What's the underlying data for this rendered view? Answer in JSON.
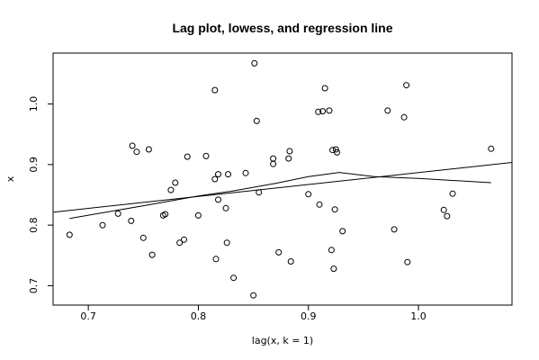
{
  "chart_data": {
    "type": "scatter",
    "title": "Lag plot, lowess, and regression line",
    "xlabel": "lag(x, k = 1)",
    "ylabel": "x",
    "xlim": [
      0.668,
      1.085
    ],
    "ylim": [
      0.668,
      1.084
    ],
    "xticks": [
      0.7,
      0.8,
      0.9,
      1.0
    ],
    "xtick_labels": [
      "0.7",
      "0.8",
      "0.9",
      "1.0"
    ],
    "yticks": [
      0.7,
      0.8,
      0.9,
      1.0
    ],
    "ytick_labels": [
      "0.7",
      "0.8",
      "0.9",
      "1.0"
    ],
    "grid": false,
    "points": [
      [
        0.683,
        0.784
      ],
      [
        0.713,
        0.8
      ],
      [
        0.727,
        0.819
      ],
      [
        0.739,
        0.807
      ],
      [
        0.74,
        0.931
      ],
      [
        0.744,
        0.921
      ],
      [
        0.75,
        0.779
      ],
      [
        0.755,
        0.925
      ],
      [
        0.758,
        0.751
      ],
      [
        0.768,
        0.816
      ],
      [
        0.77,
        0.818
      ],
      [
        0.775,
        0.858
      ],
      [
        0.779,
        0.87
      ],
      [
        0.783,
        0.771
      ],
      [
        0.787,
        0.776
      ],
      [
        0.79,
        0.913
      ],
      [
        0.8,
        0.816
      ],
      [
        0.807,
        0.914
      ],
      [
        0.815,
        1.023
      ],
      [
        0.815,
        0.876
      ],
      [
        0.816,
        0.744
      ],
      [
        0.818,
        0.884
      ],
      [
        0.818,
        0.842
      ],
      [
        0.825,
        0.828
      ],
      [
        0.826,
        0.771
      ],
      [
        0.827,
        0.884
      ],
      [
        0.832,
        0.713
      ],
      [
        0.843,
        0.886
      ],
      [
        0.85,
        0.684
      ],
      [
        0.851,
        1.067
      ],
      [
        0.853,
        0.972
      ],
      [
        0.855,
        0.854
      ],
      [
        0.868,
        0.901
      ],
      [
        0.868,
        0.91
      ],
      [
        0.873,
        0.755
      ],
      [
        0.882,
        0.91
      ],
      [
        0.883,
        0.922
      ],
      [
        0.884,
        0.74
      ],
      [
        0.9,
        0.851
      ],
      [
        0.909,
        0.987
      ],
      [
        0.91,
        0.834
      ],
      [
        0.913,
        0.988
      ],
      [
        0.915,
        1.026
      ],
      [
        0.919,
        0.989
      ],
      [
        0.921,
        0.759
      ],
      [
        0.922,
        0.924
      ],
      [
        0.923,
        0.728
      ],
      [
        0.924,
        0.826
      ],
      [
        0.925,
        0.925
      ],
      [
        0.926,
        0.92
      ],
      [
        0.931,
        0.79
      ],
      [
        0.972,
        0.989
      ],
      [
        0.978,
        0.793
      ],
      [
        0.987,
        0.978
      ],
      [
        0.989,
        1.031
      ],
      [
        0.99,
        0.739
      ],
      [
        1.023,
        0.825
      ],
      [
        1.026,
        0.815
      ],
      [
        1.031,
        0.852
      ],
      [
        1.066,
        0.926
      ]
    ],
    "series": [
      {
        "type": "line",
        "x": [
          0.6685,
          1.085
        ],
        "y": [
          0.8215,
          0.9035
        ]
      },
      {
        "type": "line",
        "x": [
          0.683,
          0.75,
          0.8,
          0.83,
          0.87,
          0.9,
          0.928,
          0.96,
          1.0,
          1.066
        ],
        "y": [
          0.811,
          0.832,
          0.848,
          0.856,
          0.869,
          0.88,
          0.887,
          0.88,
          0.877,
          0.87
        ]
      }
    ]
  }
}
